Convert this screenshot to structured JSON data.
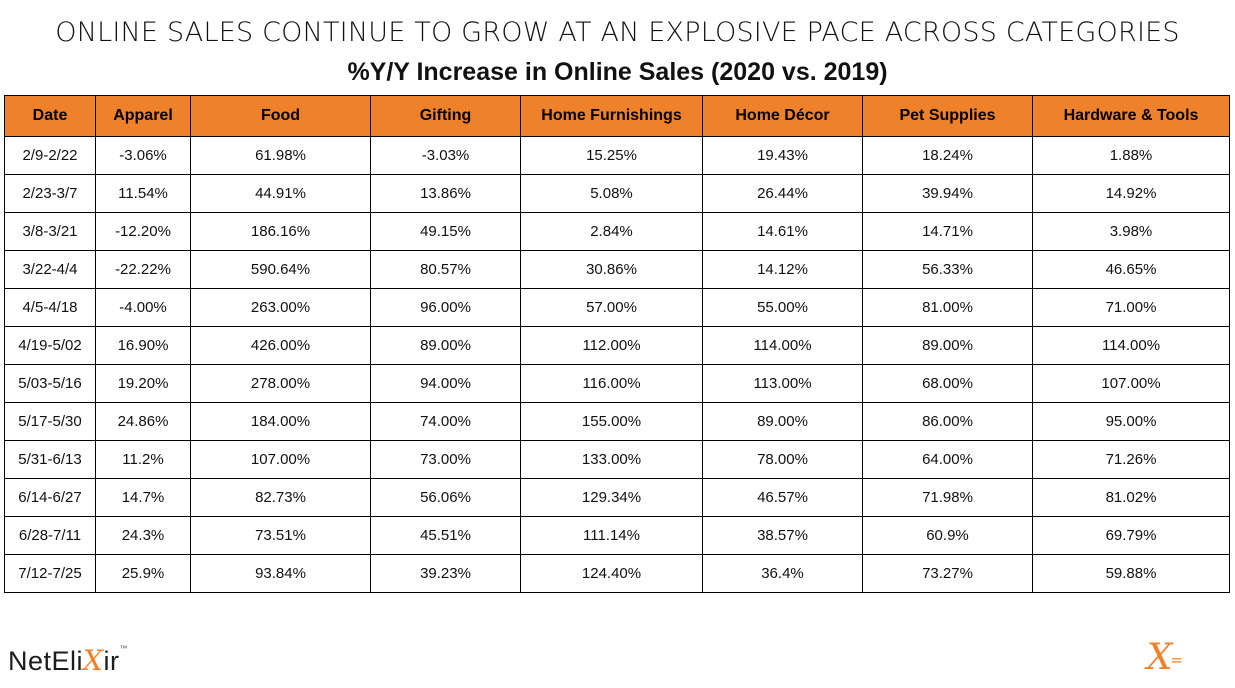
{
  "headline": "ONLINE SALES CONTINUE TO GROW AT AN EXPLOSIVE PACE ACROSS CATEGORIES",
  "subtitle": "%Y/Y Increase in Online Sales (2020 vs. 2019)",
  "colors": {
    "header_fill": "#f0812b",
    "brand_accent": "#f0812b"
  },
  "logo": {
    "prefix": "NetEli",
    "x_glyph": "X",
    "suffix": "ir",
    "tm": "™"
  },
  "corner_mark": {
    "glyph": "X",
    "eq": "="
  },
  "chart_data": {
    "type": "table",
    "title": "%Y/Y Increase in Online Sales (2020 vs. 2019)",
    "columns": [
      "Date",
      "Apparel",
      "Food",
      "Gifting",
      "Home Furnishings",
      "Home Décor",
      "Pet Supplies",
      "Hardware & Tools"
    ],
    "rows": [
      [
        "2/9-2/22",
        "-3.06%",
        "61.98%",
        "-3.03%",
        "15.25%",
        "19.43%",
        "18.24%",
        "1.88%"
      ],
      [
        "2/23-3/7",
        "11.54%",
        "44.91%",
        "13.86%",
        "5.08%",
        "26.44%",
        "39.94%",
        "14.92%"
      ],
      [
        "3/8-3/21",
        "-12.20%",
        "186.16%",
        "49.15%",
        "2.84%",
        "14.61%",
        "14.71%",
        "3.98%"
      ],
      [
        "3/22-4/4",
        "-22.22%",
        "590.64%",
        "80.57%",
        "30.86%",
        "14.12%",
        "56.33%",
        "46.65%"
      ],
      [
        "4/5-4/18",
        "-4.00%",
        "263.00%",
        "96.00%",
        "57.00%",
        "55.00%",
        "81.00%",
        "71.00%"
      ],
      [
        "4/19-5/02",
        "16.90%",
        "426.00%",
        "89.00%",
        "112.00%",
        "114.00%",
        "89.00%",
        "114.00%"
      ],
      [
        "5/03-5/16",
        "19.20%",
        "278.00%",
        "94.00%",
        "116.00%",
        "113.00%",
        "68.00%",
        "107.00%"
      ],
      [
        "5/17-5/30",
        "24.86%",
        "184.00%",
        "74.00%",
        "155.00%",
        "89.00%",
        "86.00%",
        "95.00%"
      ],
      [
        "5/31-6/13",
        "11.2%",
        "107.00%",
        "73.00%",
        "133.00%",
        "78.00%",
        "64.00%",
        "71.26%"
      ],
      [
        "6/14-6/27",
        "14.7%",
        "82.73%",
        "56.06%",
        "129.34%",
        "46.57%",
        "71.98%",
        "81.02%"
      ],
      [
        "6/28-7/11",
        "24.3%",
        "73.51%",
        "45.51%",
        "111.14%",
        "38.57%",
        "60.9%",
        "69.79%"
      ],
      [
        "7/12-7/25",
        "25.9%",
        "93.84%",
        "39.23%",
        "124.40%",
        "36.4%",
        "73.27%",
        "59.88%"
      ]
    ]
  }
}
